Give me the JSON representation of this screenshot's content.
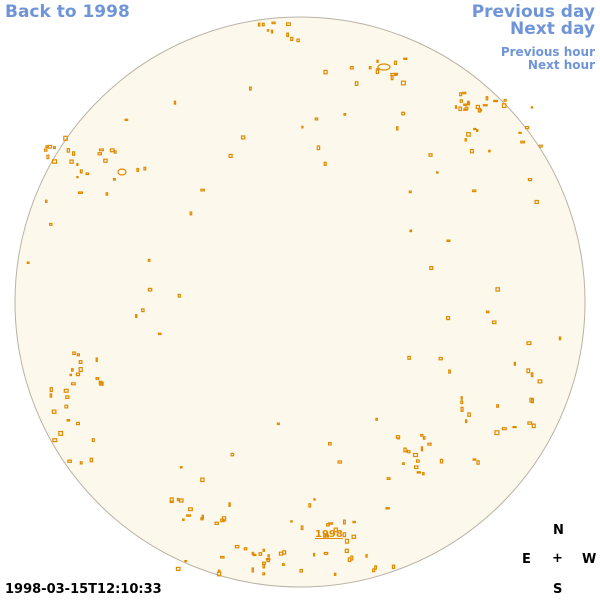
{
  "nav": {
    "back": "Back to 1998",
    "previous_day": "Previous day",
    "next_day": "Next day",
    "previous_hour": "Previous hour",
    "next_hour": "Next hour"
  },
  "image": {
    "year_link": "1998",
    "timestamp": "1998-03-15T12:10:33",
    "disk_color": "#fdf8ec",
    "feature_color": "#e08a00"
  },
  "compass": {
    "n": "N",
    "e": "E",
    "center": "+",
    "w": "W",
    "s": "S"
  }
}
